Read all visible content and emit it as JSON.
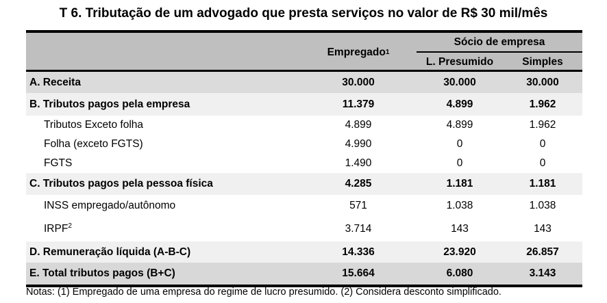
{
  "title": "T 6. Tributação de um advogado que presta serviços no valor de R$ 30 mil/mês",
  "header": {
    "col_empregado": "Empregado",
    "col_empregado_sup": "1",
    "group_socio": "Sócio de empresa",
    "col_presumido": "L. Presumido",
    "col_simples": "Simples"
  },
  "rows": [
    {
      "label": "A. Receita",
      "type": "section",
      "values": [
        "30.000",
        "30.000",
        "30.000"
      ]
    },
    {
      "label": "B. Tributos pagos pela empresa",
      "type": "section",
      "values": [
        "11.379",
        "4.899",
        "1.962"
      ]
    },
    {
      "label": "Tributos Exceto folha",
      "type": "detail",
      "values": [
        "4.899",
        "4.899",
        "1.962"
      ]
    },
    {
      "label": "Folha (exceto FGTS)",
      "type": "detail",
      "values": [
        "4.990",
        "0",
        "0"
      ]
    },
    {
      "label": "FGTS",
      "type": "detail",
      "values": [
        "1.490",
        "0",
        "0"
      ]
    },
    {
      "label": "C. Tributos pagos pela pessoa física",
      "type": "section",
      "values": [
        "4.285",
        "1.181",
        "1.181"
      ]
    },
    {
      "label": "INSS empregado/autônomo",
      "type": "detail",
      "values": [
        "571",
        "1.038",
        "1.038"
      ]
    },
    {
      "label": "IRPF",
      "sup": "2",
      "type": "detail",
      "values": [
        "3.714",
        "143",
        "143"
      ]
    },
    {
      "label": "D. Remuneração líquida (A-B-C)",
      "type": "section",
      "values": [
        "14.336",
        "23.920",
        "26.857"
      ]
    },
    {
      "label": "E. Total tributos pagos (B+C)",
      "type": "section",
      "values": [
        "15.664",
        "6.080",
        "3.143"
      ]
    }
  ],
  "notes": "Notas: (1) Empregado de uma empresa do regime de lucro presumido. (2) Considera desconto simplificado.",
  "colors": {
    "header_bg": "#bfbfbf",
    "row_a_bg": "#dbdbdb",
    "section_bg": "#f0f0f0",
    "total_bg": "#d8d8d8",
    "border": "#000000"
  }
}
